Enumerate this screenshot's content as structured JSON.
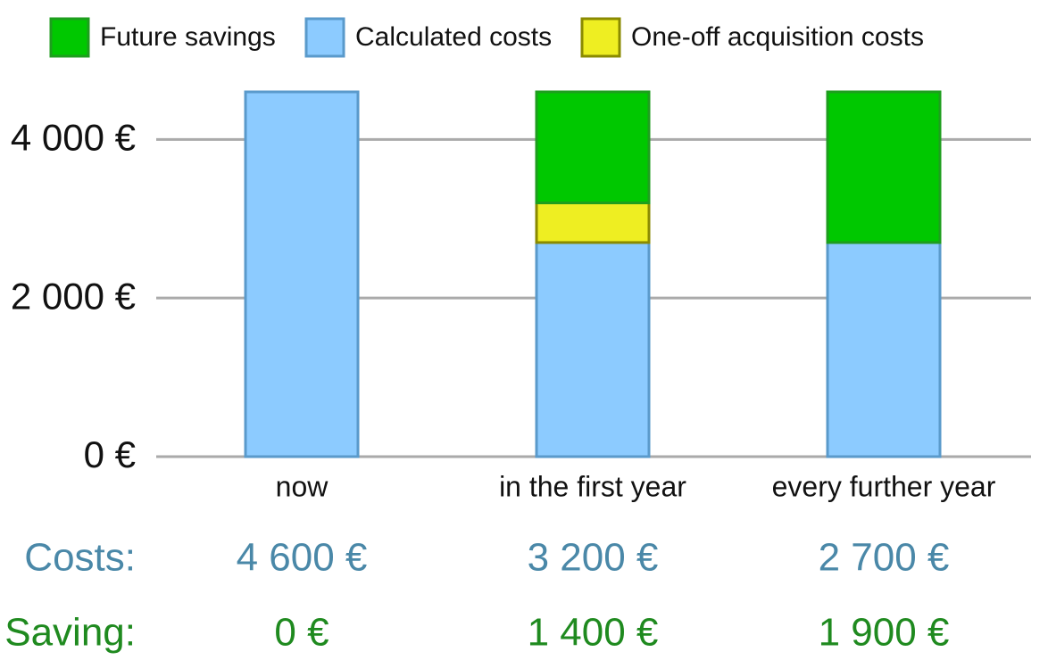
{
  "chart_data": {
    "type": "stacked_bar",
    "categories": [
      "now",
      "in the first year",
      "every further year"
    ],
    "series": [
      {
        "name": "Future savings",
        "color": "#00c800",
        "edge_color": "#1e9e1e",
        "values": [
          0,
          1400,
          1900
        ]
      },
      {
        "name": "Calculated costs",
        "color": "#8ccbff",
        "edge_color": "#5a9acb",
        "values": [
          4600,
          2700,
          2700
        ]
      },
      {
        "name": "One-off acquisition costs",
        "color": "#eeee22",
        "edge_color": "#8a8a00",
        "values": [
          0,
          500,
          0
        ]
      }
    ],
    "ylim": [
      0,
      4600
    ],
    "yticks": [
      {
        "value": 0,
        "label": "0 €"
      },
      {
        "value": 2000,
        "label": "2 000 €"
      },
      {
        "value": 4000,
        "label": "4 000 €"
      }
    ],
    "grid": true,
    "summary_rows": [
      {
        "label": "Costs:",
        "color": "#4a88a8",
        "values": [
          "4 600 €",
          "3 200 €",
          "2 700 €"
        ]
      },
      {
        "label": "Saving:",
        "color": "#1f8a1f",
        "values": [
          "0 €",
          "1 400 €",
          "1 900 €"
        ]
      }
    ]
  }
}
